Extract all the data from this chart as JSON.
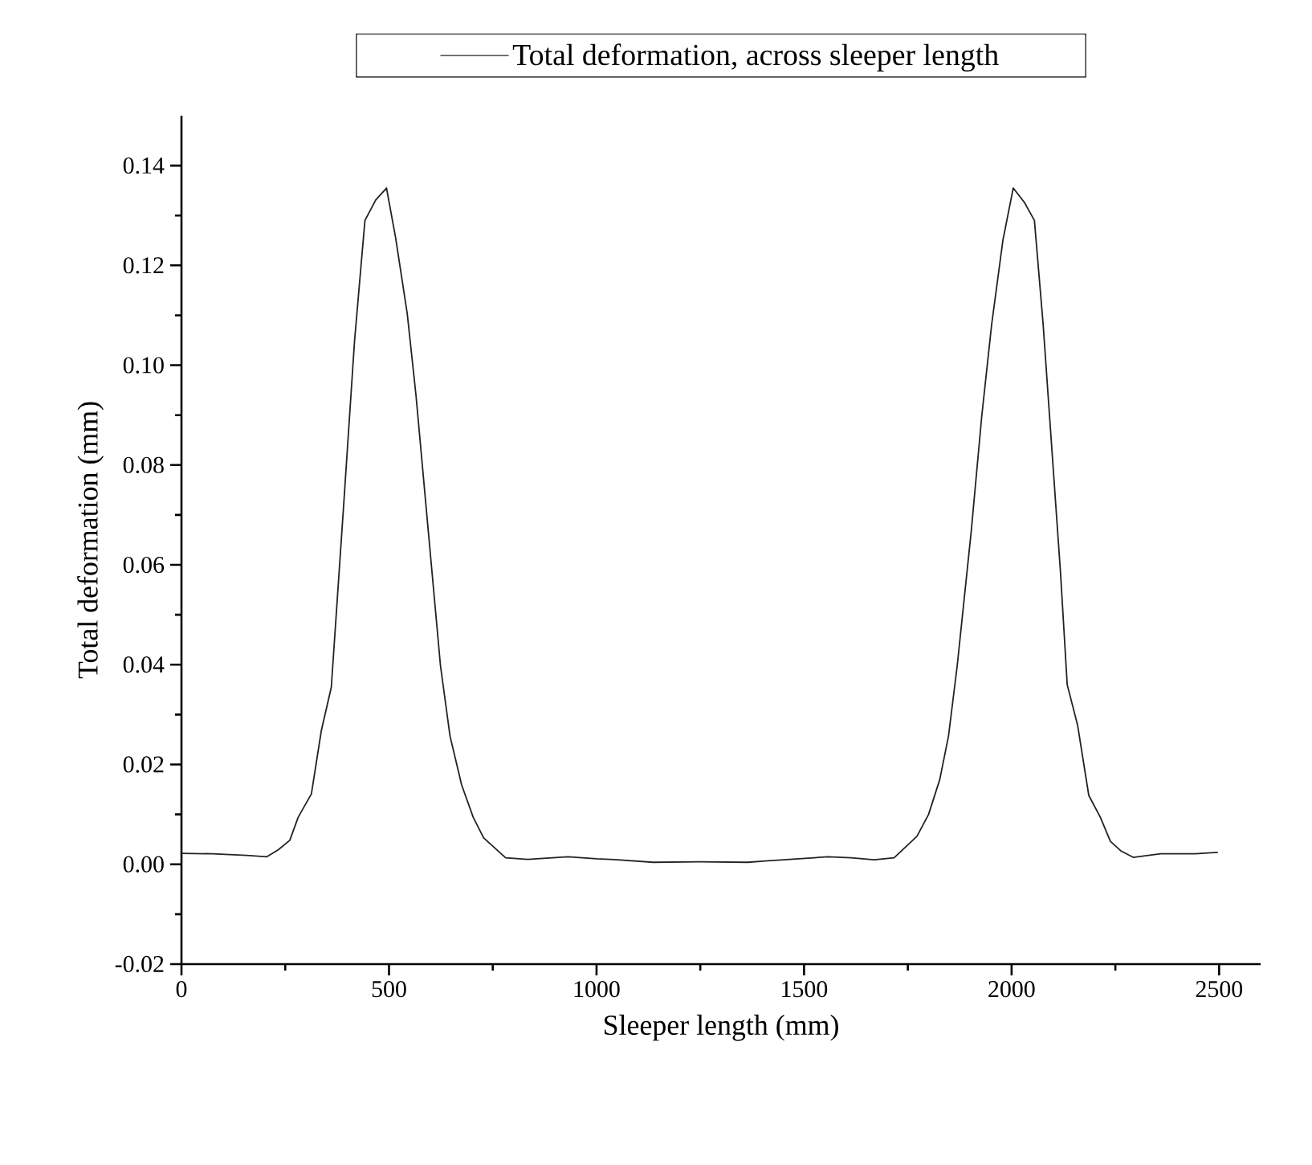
{
  "chart_data": {
    "type": "line",
    "xlabel": "Sleeper length (mm)",
    "ylabel": "Total deformation (mm)",
    "x": [
      0,
      74,
      157,
      205,
      233,
      261,
      281,
      313,
      337,
      361,
      392,
      417,
      442,
      468,
      494,
      516,
      544,
      565,
      592,
      624,
      647,
      675,
      703,
      728,
      781,
      834,
      931,
      1000,
      1033,
      1137,
      1247,
      1364,
      1413,
      1558,
      1613,
      1669,
      1717,
      1772,
      1800,
      1827,
      1848,
      1869,
      1903,
      1928,
      1952,
      1979,
      2004,
      2031,
      2055,
      2076,
      2097,
      2118,
      2134,
      2159,
      2186,
      2214,
      2238,
      2263,
      2293,
      2359,
      2442,
      2497
    ],
    "series": [
      {
        "name": "Total deformation, across sleeper length",
        "color": "#222222",
        "values": [
          0.0022,
          0.0021,
          0.0018,
          0.0015,
          0.0029,
          0.0048,
          0.0094,
          0.0141,
          0.0268,
          0.0355,
          0.0735,
          0.1049,
          0.129,
          0.1331,
          0.1355,
          0.1255,
          0.1103,
          0.094,
          0.0692,
          0.0398,
          0.0257,
          0.0159,
          0.0094,
          0.0053,
          0.0013,
          0.001,
          0.0015,
          0.0011,
          0.001,
          0.0004,
          0.0005,
          0.0004,
          0.0007,
          0.0015,
          0.0013,
          0.0009,
          0.0013,
          0.0056,
          0.01,
          0.017,
          0.0257,
          0.0398,
          0.0669,
          0.0897,
          0.1082,
          0.125,
          0.1355,
          0.1326,
          0.129,
          0.1082,
          0.0832,
          0.0583,
          0.036,
          0.0279,
          0.0138,
          0.0094,
          0.0046,
          0.0027,
          0.0014,
          0.0021,
          0.0021,
          0.0024
        ]
      }
    ],
    "xlim": [
      0,
      2600
    ],
    "ylim": [
      -0.02,
      0.15
    ],
    "xticks": [
      0,
      500,
      1000,
      1500,
      2000,
      2500
    ],
    "yticks": [
      -0.02,
      {
        "value": 0,
        "label": "0.00"
      },
      0.02,
      0.04,
      0.06,
      0.08,
      {
        "value": 0.1,
        "label": "0.10"
      },
      0.12,
      0.14
    ],
    "legend": "top",
    "line_style": "solid"
  }
}
